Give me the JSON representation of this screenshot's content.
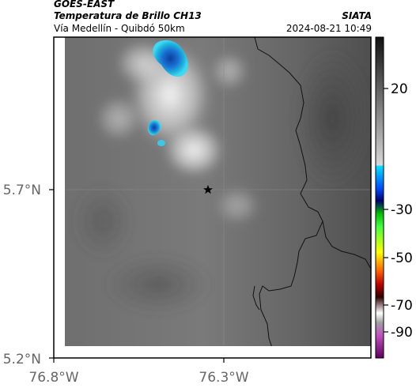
{
  "header": {
    "satellite": "GOES-EAST",
    "product": "Temperatura de Brillo CH13",
    "route": "Vía Medellín - Quibdó 50km",
    "agency": "SIATA",
    "datetime": "2024-08-21 10:49"
  },
  "axes": {
    "lat_ticks": [
      "5.7°N",
      "5.2°N"
    ],
    "lon_ticks": [
      "76.8°W",
      "76.3°W"
    ]
  },
  "colorbar": {
    "labels": [
      "20",
      "-30",
      "-50",
      "-70",
      "-90"
    ]
  },
  "marker": {
    "icon": "star-icon"
  }
}
